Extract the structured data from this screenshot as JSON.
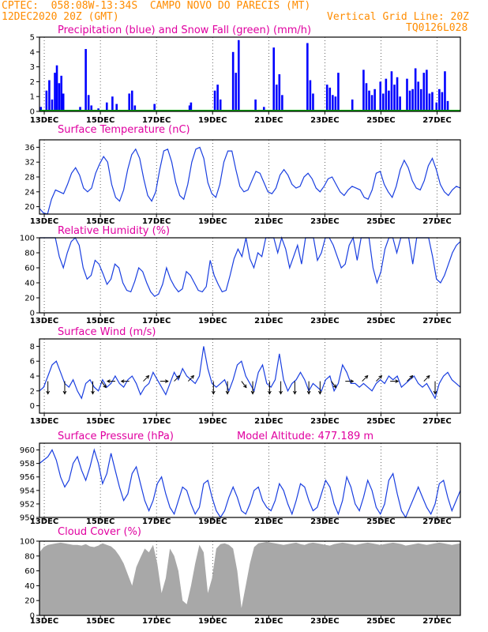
{
  "header": {
    "line1_left": "CPTEC:  058:08W-13:34S  CAMPO NOVO DO PARECIS (MT)",
    "line2_left": "12DEC2020 20Z (GMT)",
    "line2_right": "Vertical Grid Line: 20Z",
    "line3_right": "TQ0126L028",
    "color": "#ff8c00"
  },
  "x_axis": {
    "ticks": [
      "13DEC",
      "15DEC",
      "17DEC",
      "19DEC",
      "21DEC",
      "23DEC",
      "25DEC",
      "27DEC"
    ],
    "tick_days": [
      0.17,
      2.17,
      4.17,
      6.17,
      8.17,
      10.17,
      12.17,
      14.17
    ],
    "range_days": [
      0,
      15
    ]
  },
  "chart_data": [
    {
      "type": "bar",
      "title": "Precipitation (blue) and Snow Fall (green) (mm/h)",
      "ylim": [
        0,
        5
      ],
      "yticks": [
        0,
        1,
        2,
        3,
        4,
        5
      ],
      "series": [
        {
          "name": "Precipitation",
          "color": "#0000ff",
          "points": [
            [
              0.05,
              0.3
            ],
            [
              0.25,
              1.4
            ],
            [
              0.35,
              2.1
            ],
            [
              0.45,
              0.8
            ],
            [
              0.55,
              2.6
            ],
            [
              0.62,
              3.1
            ],
            [
              0.7,
              1.9
            ],
            [
              0.78,
              2.4
            ],
            [
              0.85,
              1.2
            ],
            [
              1.45,
              0.3
            ],
            [
              1.65,
              4.2
            ],
            [
              1.75,
              1.1
            ],
            [
              1.85,
              0.4
            ],
            [
              2.1,
              0.2
            ],
            [
              2.4,
              0.6
            ],
            [
              2.6,
              1.0
            ],
            [
              2.75,
              0.5
            ],
            [
              3.2,
              1.2
            ],
            [
              3.3,
              1.4
            ],
            [
              3.4,
              0.4
            ],
            [
              4.1,
              0.5
            ],
            [
              5.35,
              0.4
            ],
            [
              5.4,
              0.6
            ],
            [
              6.25,
              1.4
            ],
            [
              6.35,
              1.8
            ],
            [
              6.45,
              0.8
            ],
            [
              6.9,
              4.0
            ],
            [
              7.0,
              2.6
            ],
            [
              7.1,
              4.8
            ],
            [
              7.7,
              0.8
            ],
            [
              8.0,
              0.3
            ],
            [
              8.35,
              4.3
            ],
            [
              8.45,
              1.8
            ],
            [
              8.55,
              2.5
            ],
            [
              8.65,
              1.1
            ],
            [
              9.55,
              4.6
            ],
            [
              9.65,
              2.1
            ],
            [
              9.75,
              1.2
            ],
            [
              10.25,
              1.8
            ],
            [
              10.35,
              1.6
            ],
            [
              10.45,
              1.1
            ],
            [
              10.55,
              1.0
            ],
            [
              10.65,
              2.6
            ],
            [
              11.15,
              0.8
            ],
            [
              11.55,
              2.8
            ],
            [
              11.65,
              1.9
            ],
            [
              11.75,
              1.4
            ],
            [
              11.85,
              1.1
            ],
            [
              11.95,
              1.5
            ],
            [
              12.15,
              2.0
            ],
            [
              12.25,
              1.2
            ],
            [
              12.35,
              2.2
            ],
            [
              12.45,
              1.4
            ],
            [
              12.55,
              2.7
            ],
            [
              12.65,
              1.8
            ],
            [
              12.75,
              2.3
            ],
            [
              12.85,
              1.0
            ],
            [
              13.1,
              2.2
            ],
            [
              13.2,
              1.4
            ],
            [
              13.3,
              1.5
            ],
            [
              13.4,
              2.9
            ],
            [
              13.5,
              2.0
            ],
            [
              13.6,
              1.5
            ],
            [
              13.7,
              2.6
            ],
            [
              13.8,
              2.8
            ],
            [
              13.9,
              1.2
            ],
            [
              14.0,
              1.3
            ],
            [
              14.15,
              0.6
            ],
            [
              14.25,
              1.5
            ],
            [
              14.35,
              1.3
            ],
            [
              14.45,
              2.7
            ],
            [
              14.55,
              0.7
            ]
          ]
        },
        {
          "name": "Snow Fall",
          "color": "#00a000",
          "values_mm_h": 0
        }
      ]
    },
    {
      "type": "line",
      "title": "Surface Temperature (nC)",
      "ylim": [
        18,
        38
      ],
      "yticks": [
        20,
        24,
        28,
        32,
        36
      ],
      "color": "#1a3fe0",
      "y": [
        19.5,
        18.3,
        18.0,
        22.0,
        24.5,
        24.0,
        23.5,
        26.0,
        29.0,
        30.5,
        28.5,
        25.0,
        24.0,
        25.0,
        29.0,
        31.5,
        33.5,
        32.0,
        26.0,
        22.5,
        21.5,
        24.5,
        30.0,
        34.0,
        35.5,
        33.0,
        27.5,
        23.0,
        21.5,
        24.0,
        30.0,
        35.0,
        35.5,
        32.0,
        26.5,
        23.0,
        22.0,
        26.0,
        32.0,
        35.5,
        36.0,
        33.0,
        26.5,
        23.5,
        22.5,
        26.0,
        32.0,
        35.0,
        35.0,
        30.0,
        25.5,
        24.0,
        24.5,
        27.0,
        29.5,
        29.0,
        26.5,
        24.0,
        23.5,
        25.0,
        28.5,
        30.0,
        28.5,
        26.0,
        25.0,
        25.5,
        28.0,
        29.0,
        27.5,
        25.0,
        24.0,
        25.5,
        27.5,
        28.0,
        26.0,
        24.0,
        23.0,
        24.5,
        25.5,
        25.0,
        24.5,
        22.5,
        22.0,
        24.5,
        29.0,
        29.5,
        26.0,
        24.0,
        22.5,
        25.5,
        30.0,
        32.5,
        30.5,
        27.0,
        25.0,
        24.5,
        27.0,
        31.0,
        33.0,
        30.0,
        26.0,
        24.0,
        23.0,
        24.5,
        25.5,
        25.0
      ]
    },
    {
      "type": "line",
      "title": "Relative Humidity (%)",
      "ylim": [
        0,
        100
      ],
      "yticks": [
        0,
        20,
        40,
        60,
        80,
        100
      ],
      "color": "#1a3fe0",
      "y": [
        100,
        100,
        100,
        100,
        100,
        75,
        60,
        80,
        95,
        100,
        90,
        60,
        45,
        50,
        70,
        65,
        52,
        38,
        45,
        65,
        60,
        40,
        30,
        28,
        42,
        60,
        55,
        40,
        28,
        22,
        25,
        38,
        60,
        45,
        35,
        28,
        32,
        55,
        50,
        40,
        30,
        28,
        35,
        70,
        50,
        38,
        28,
        30,
        50,
        72,
        85,
        75,
        100,
        72,
        60,
        80,
        75,
        100,
        100,
        100,
        80,
        100,
        85,
        60,
        75,
        90,
        65,
        100,
        100,
        100,
        70,
        80,
        100,
        100,
        90,
        75,
        60,
        65,
        90,
        100,
        70,
        100,
        100,
        100,
        60,
        40,
        55,
        85,
        100,
        100,
        80,
        100,
        100,
        100,
        65,
        100,
        100,
        100,
        100,
        75,
        45,
        40,
        50,
        65,
        80,
        90,
        95
      ]
    },
    {
      "type": "line",
      "title": "Surface Wind (m/s)",
      "ylim": [
        -1,
        9
      ],
      "yticks": [
        0,
        2,
        4,
        6,
        8
      ],
      "color": "#1a3fe0",
      "y": [
        2.0,
        2.5,
        4.0,
        5.5,
        6.0,
        4.5,
        3.0,
        2.5,
        3.5,
        2.0,
        1.0,
        3.0,
        3.5,
        2.5,
        2.0,
        3.5,
        2.5,
        3.0,
        4.0,
        3.0,
        2.5,
        3.5,
        4.0,
        3.0,
        1.5,
        2.5,
        3.0,
        4.5,
        3.5,
        2.5,
        1.5,
        3.0,
        4.5,
        3.5,
        5.0,
        4.0,
        3.5,
        3.0,
        4.0,
        8.0,
        5.0,
        3.0,
        2.5,
        3.0,
        3.5,
        2.0,
        3.5,
        5.5,
        6.0,
        4.0,
        3.0,
        2.0,
        4.5,
        5.5,
        3.0,
        2.5,
        3.5,
        7.0,
        3.5,
        2.0,
        3.0,
        3.5,
        4.5,
        3.5,
        2.0,
        3.0,
        2.5,
        2.0,
        3.5,
        4.0,
        2.0,
        3.0,
        5.5,
        4.5,
        3.0,
        3.0,
        2.5,
        3.0,
        2.5,
        2.0,
        3.0,
        3.5,
        3.0,
        4.0,
        3.5,
        4.0,
        2.5,
        3.0,
        3.5,
        4.0,
        3.0,
        2.5,
        3.0,
        2.0,
        1.0,
        3.0,
        4.0,
        4.5,
        3.5,
        3.0,
        2.5
      ],
      "arrows": [
        [
          0.3,
          300,
          "down"
        ],
        [
          0.9,
          280,
          "down"
        ],
        [
          1.9,
          300,
          "down"
        ],
        [
          2.2,
          170,
          "down-right"
        ],
        [
          2.7,
          90,
          "left"
        ],
        [
          3.2,
          90,
          "left"
        ],
        [
          3.7,
          40,
          "up-right"
        ],
        [
          4.3,
          90,
          "right"
        ],
        [
          4.8,
          40,
          "up-right"
        ],
        [
          5.3,
          60,
          "up-right"
        ],
        [
          6.2,
          300,
          "down"
        ],
        [
          6.7,
          250,
          "down"
        ],
        [
          7.2,
          280,
          "down-right"
        ],
        [
          7.6,
          300,
          "down"
        ],
        [
          8.2,
          300,
          "down"
        ],
        [
          8.6,
          320,
          "down"
        ],
        [
          9.1,
          330,
          "down"
        ],
        [
          9.6,
          280,
          "down"
        ],
        [
          10.0,
          300,
          "down"
        ],
        [
          10.4,
          310,
          "down-right"
        ],
        [
          10.9,
          80,
          "right"
        ],
        [
          11.5,
          60,
          "up-right"
        ],
        [
          12.0,
          50,
          "up-right"
        ],
        [
          12.5,
          80,
          "right"
        ],
        [
          13.1,
          60,
          "up-right"
        ],
        [
          13.7,
          50,
          "up-right"
        ],
        [
          14.1,
          300,
          "down"
        ]
      ]
    },
    {
      "type": "line",
      "title": "Surface Pressure (hPa)",
      "subtitle": "Model Altitude: 477.189  m",
      "ylim": [
        950,
        961
      ],
      "yticks": [
        950,
        952,
        954,
        956,
        958,
        960
      ],
      "color": "#1a3fe0",
      "y": [
        958.0,
        958.5,
        959.0,
        960.0,
        958.5,
        956.0,
        954.5,
        955.5,
        958.0,
        959.0,
        957.0,
        955.5,
        957.5,
        960.0,
        958.0,
        955.0,
        956.5,
        959.5,
        957.0,
        954.5,
        952.5,
        953.5,
        956.5,
        957.5,
        955.0,
        952.5,
        951.0,
        952.5,
        955.0,
        956.0,
        953.5,
        951.5,
        950.5,
        952.5,
        954.5,
        954.0,
        952.0,
        950.5,
        951.5,
        955.0,
        955.5,
        953.0,
        951.0,
        950.0,
        951.0,
        953.0,
        954.5,
        953.0,
        951.0,
        950.5,
        952.0,
        954.0,
        954.5,
        952.5,
        951.5,
        951.0,
        952.5,
        955.0,
        954.0,
        952.0,
        950.5,
        952.5,
        955.0,
        954.5,
        952.5,
        951.0,
        951.5,
        953.5,
        955.5,
        954.5,
        952.0,
        950.5,
        952.5,
        956.0,
        954.5,
        952.0,
        951.0,
        953.0,
        955.5,
        954.0,
        951.5,
        950.5,
        952.0,
        955.5,
        956.5,
        953.5,
        951.0,
        950.0,
        951.5,
        953.0,
        954.5,
        953.0,
        951.5,
        950.5,
        952.0,
        955.0,
        955.5,
        953.0,
        951.0,
        952.5,
        954.0
      ]
    },
    {
      "type": "area",
      "title": "Cloud Cover (%)",
      "ylim": [
        0,
        100
      ],
      "yticks": [
        0,
        20,
        40,
        60,
        80,
        100
      ],
      "color": "#a8a8a8",
      "y": [
        85,
        92,
        95,
        96,
        97,
        98,
        97,
        96,
        95,
        95,
        94,
        96,
        93,
        92,
        94,
        97,
        95,
        93,
        88,
        80,
        70,
        55,
        40,
        65,
        78,
        90,
        85,
        95,
        70,
        30,
        50,
        90,
        80,
        60,
        20,
        15,
        40,
        70,
        95,
        85,
        30,
        50,
        90,
        96,
        97,
        95,
        90,
        60,
        10,
        40,
        70,
        92,
        97,
        98,
        99,
        98,
        97,
        96,
        95,
        96,
        97,
        98,
        96,
        95,
        97,
        98,
        97,
        96,
        95,
        94,
        96,
        97,
        98,
        97,
        96,
        95,
        96,
        97,
        98,
        97,
        96,
        95,
        96,
        97,
        98,
        97,
        96,
        94,
        95,
        96,
        97,
        96,
        95,
        96,
        97,
        98,
        97,
        96,
        95,
        96,
        97
      ]
    }
  ]
}
